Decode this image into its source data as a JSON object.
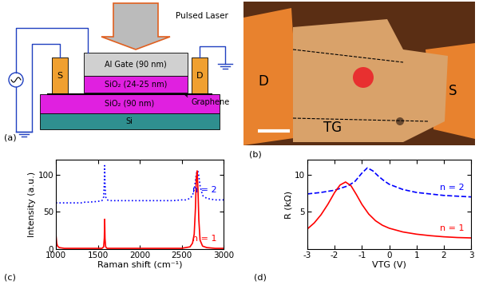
{
  "panel_labels": [
    "(a)",
    "(b)",
    "(c)",
    "(d)"
  ],
  "diagram": {
    "laser": "Pulsed Laser",
    "layers": [
      "Al Gate (90 nm)",
      "SiO₂ (24-25 nm)",
      "SiO₂ (90 nm)",
      "Si"
    ],
    "source": "S",
    "drain": "D",
    "graphene": "Graphene"
  },
  "image": {
    "labels": [
      "D",
      "S",
      "TG"
    ]
  },
  "chart_data": [
    {
      "type": "line",
      "xlabel": "Raman shift (cm⁻¹)",
      "ylabel": "Intensity (a.u.)",
      "xlim": [
        1000,
        3000
      ],
      "ylim": [
        0,
        120
      ],
      "xticks": [
        1000,
        1500,
        2000,
        2500,
        3000
      ],
      "yticks": [
        0,
        50,
        100
      ],
      "x": [
        1000,
        1010,
        1020,
        1040,
        1100,
        1200,
        1300,
        1350,
        1400,
        1500,
        1550,
        1570,
        1578,
        1582,
        1586,
        1594,
        1610,
        1650,
        1800,
        2000,
        2200,
        2400,
        2500,
        2550,
        2600,
        2630,
        2650,
        2665,
        2675,
        2685,
        2695,
        2705,
        2720,
        2750,
        2800,
        2900,
        3000
      ],
      "series": [
        {
          "name": "n = 2",
          "color": "#0000ff",
          "line_style": "dotted",
          "values": [
            62,
            62,
            62,
            62,
            62,
            62,
            62,
            63,
            63,
            64,
            65,
            70,
            90,
            112,
            88,
            70,
            66,
            65,
            65,
            65,
            65,
            65,
            66,
            66,
            68,
            72,
            80,
            92,
            100,
            105,
            104,
            98,
            85,
            72,
            68,
            66,
            66
          ]
        },
        {
          "name": "n = 1",
          "color": "#ff0000",
          "line_style": "solid",
          "values": [
            20,
            8,
            4,
            2,
            1,
            1,
            1,
            1,
            1,
            1,
            1,
            3,
            15,
            40,
            14,
            3,
            1,
            1,
            1,
            1,
            1,
            1,
            1,
            2,
            3,
            8,
            20,
            55,
            95,
            105,
            80,
            40,
            12,
            4,
            2,
            1,
            1
          ]
        }
      ]
    },
    {
      "type": "line",
      "xlabel": "VTG (V)",
      "ylabel": "R (kΩ)",
      "xlim": [
        -3,
        3
      ],
      "ylim": [
        0,
        12
      ],
      "xticks": [
        -3,
        -2,
        -1,
        0,
        1,
        2,
        3
      ],
      "yticks": [
        5,
        10
      ],
      "series": [
        {
          "name": "n = 2",
          "color": "#0000ff",
          "line_style": "dashed",
          "x": [
            -3,
            -2.5,
            -2,
            -1.5,
            -1.25,
            -1.0,
            -0.8,
            -0.6,
            -0.4,
            -0.2,
            0,
            0.5,
            1,
            1.5,
            2,
            2.5,
            3
          ],
          "values": [
            7.4,
            7.6,
            7.9,
            8.5,
            9.1,
            10.2,
            10.9,
            10.5,
            9.8,
            9.2,
            8.7,
            8.0,
            7.6,
            7.4,
            7.2,
            7.1,
            7.0
          ]
        },
        {
          "name": "n = 1",
          "color": "#ff0000",
          "line_style": "solid",
          "x": [
            -3,
            -2.75,
            -2.5,
            -2.25,
            -2.0,
            -1.8,
            -1.6,
            -1.4,
            -1.2,
            -1.0,
            -0.75,
            -0.5,
            -0.25,
            0,
            0.5,
            1,
            1.5,
            2,
            2.5,
            3
          ],
          "values": [
            2.7,
            3.5,
            4.6,
            6.0,
            7.6,
            8.6,
            9.0,
            8.5,
            7.3,
            6.0,
            4.7,
            3.8,
            3.2,
            2.8,
            2.3,
            2.0,
            1.8,
            1.65,
            1.55,
            1.5
          ]
        }
      ]
    }
  ]
}
